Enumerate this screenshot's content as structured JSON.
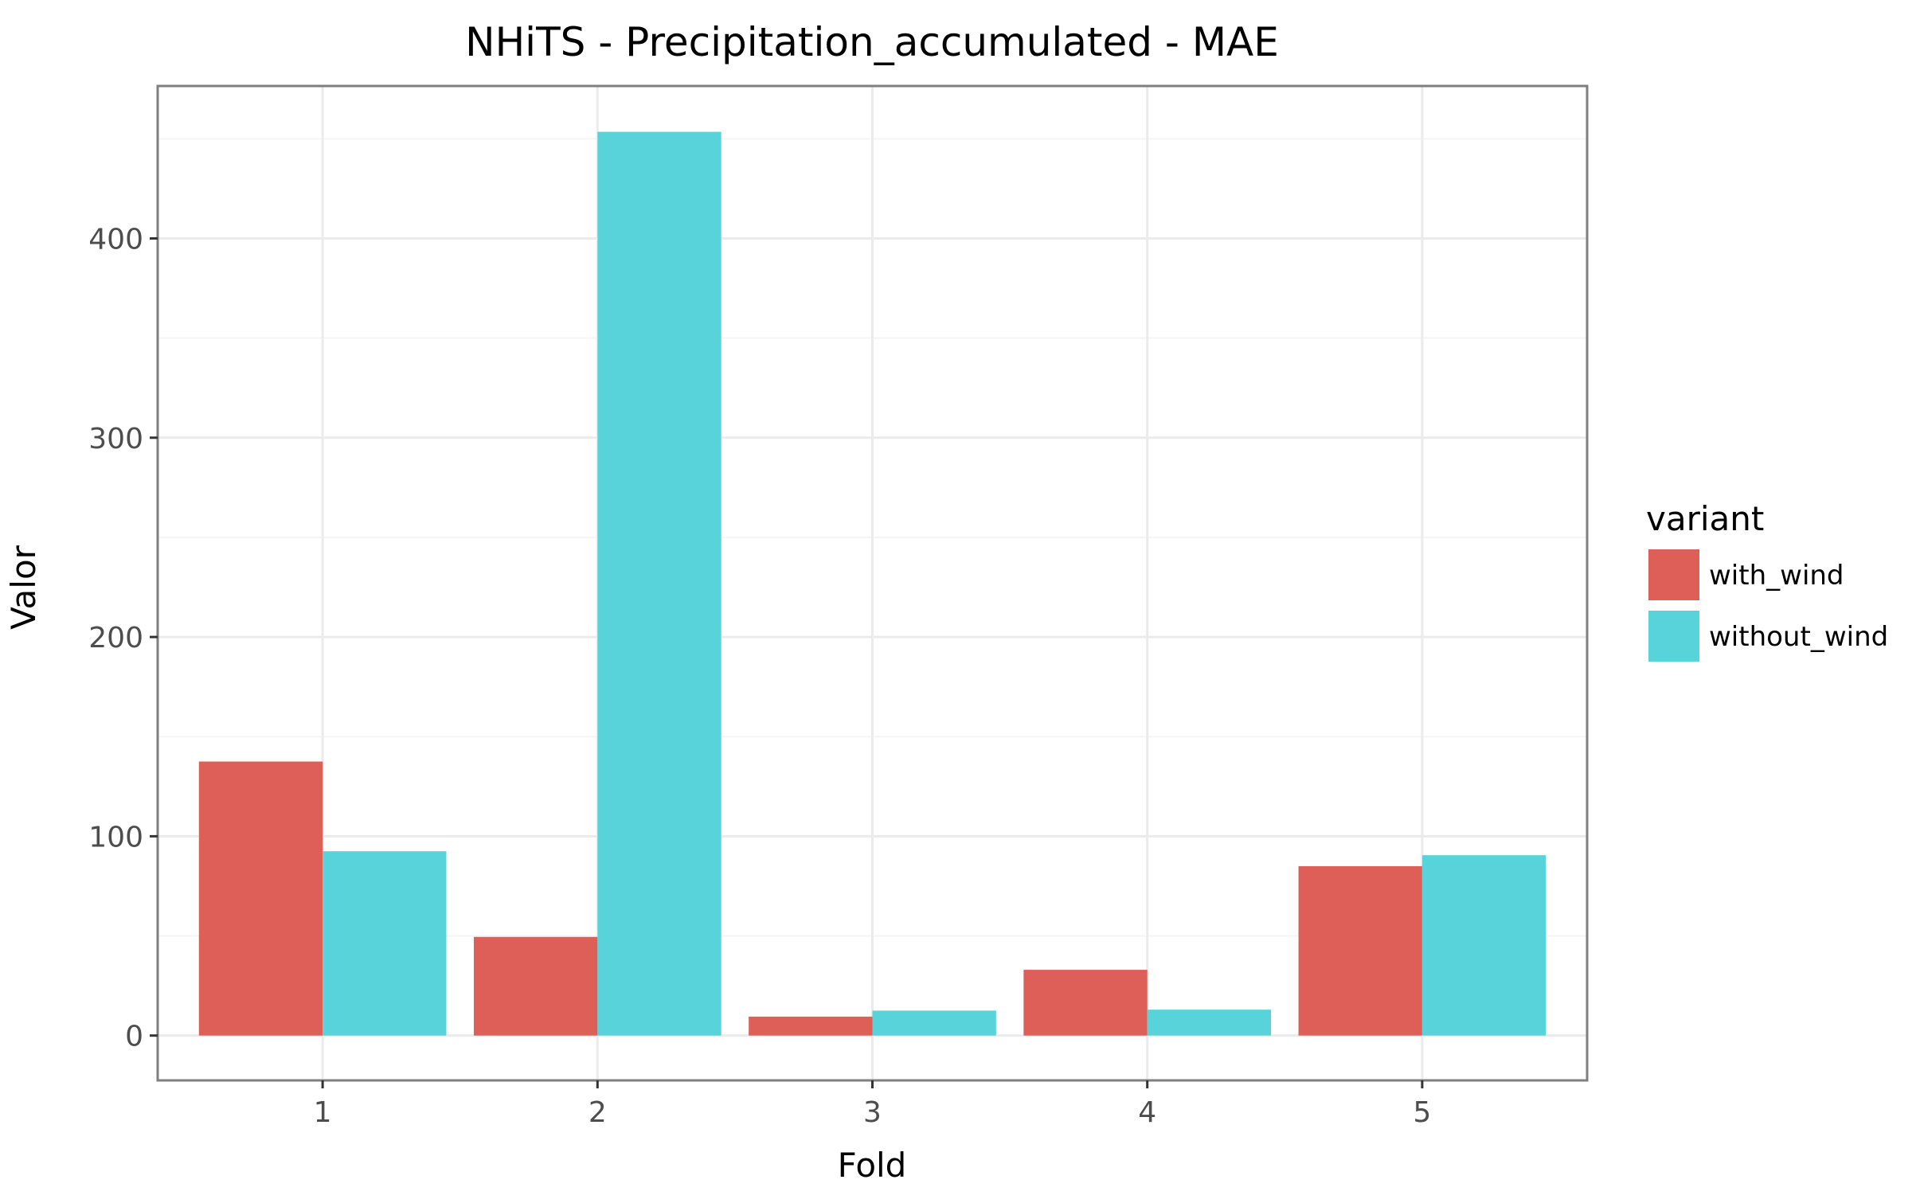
{
  "chart_data": {
    "type": "bar",
    "title": "NHiTS - Precipitation_accumulated - MAE",
    "xlabel": "Fold",
    "ylabel": "Valor",
    "categories": [
      "1",
      "2",
      "3",
      "4",
      "5"
    ],
    "series": [
      {
        "name": "with_wind",
        "color": "#dd5f57",
        "values": [
          137.5,
          49.5,
          9.5,
          33.0,
          85.0
        ]
      },
      {
        "name": "without_wind",
        "color": "#58d3da",
        "values": [
          92.5,
          453.5,
          12.5,
          13.0,
          90.5
        ]
      }
    ],
    "ylim": [
      -22.5,
      476.5
    ],
    "yticks": [
      0,
      100,
      200,
      300,
      400
    ],
    "yticks_labels": [
      "0",
      "100",
      "200",
      "300",
      "400"
    ],
    "grid": true,
    "legend": {
      "title": "variant",
      "position": "right"
    },
    "colors": {
      "panel_border": "#7f7f7f",
      "grid_major": "#ebebeb",
      "grid_minor": "#f5f5f5"
    }
  }
}
